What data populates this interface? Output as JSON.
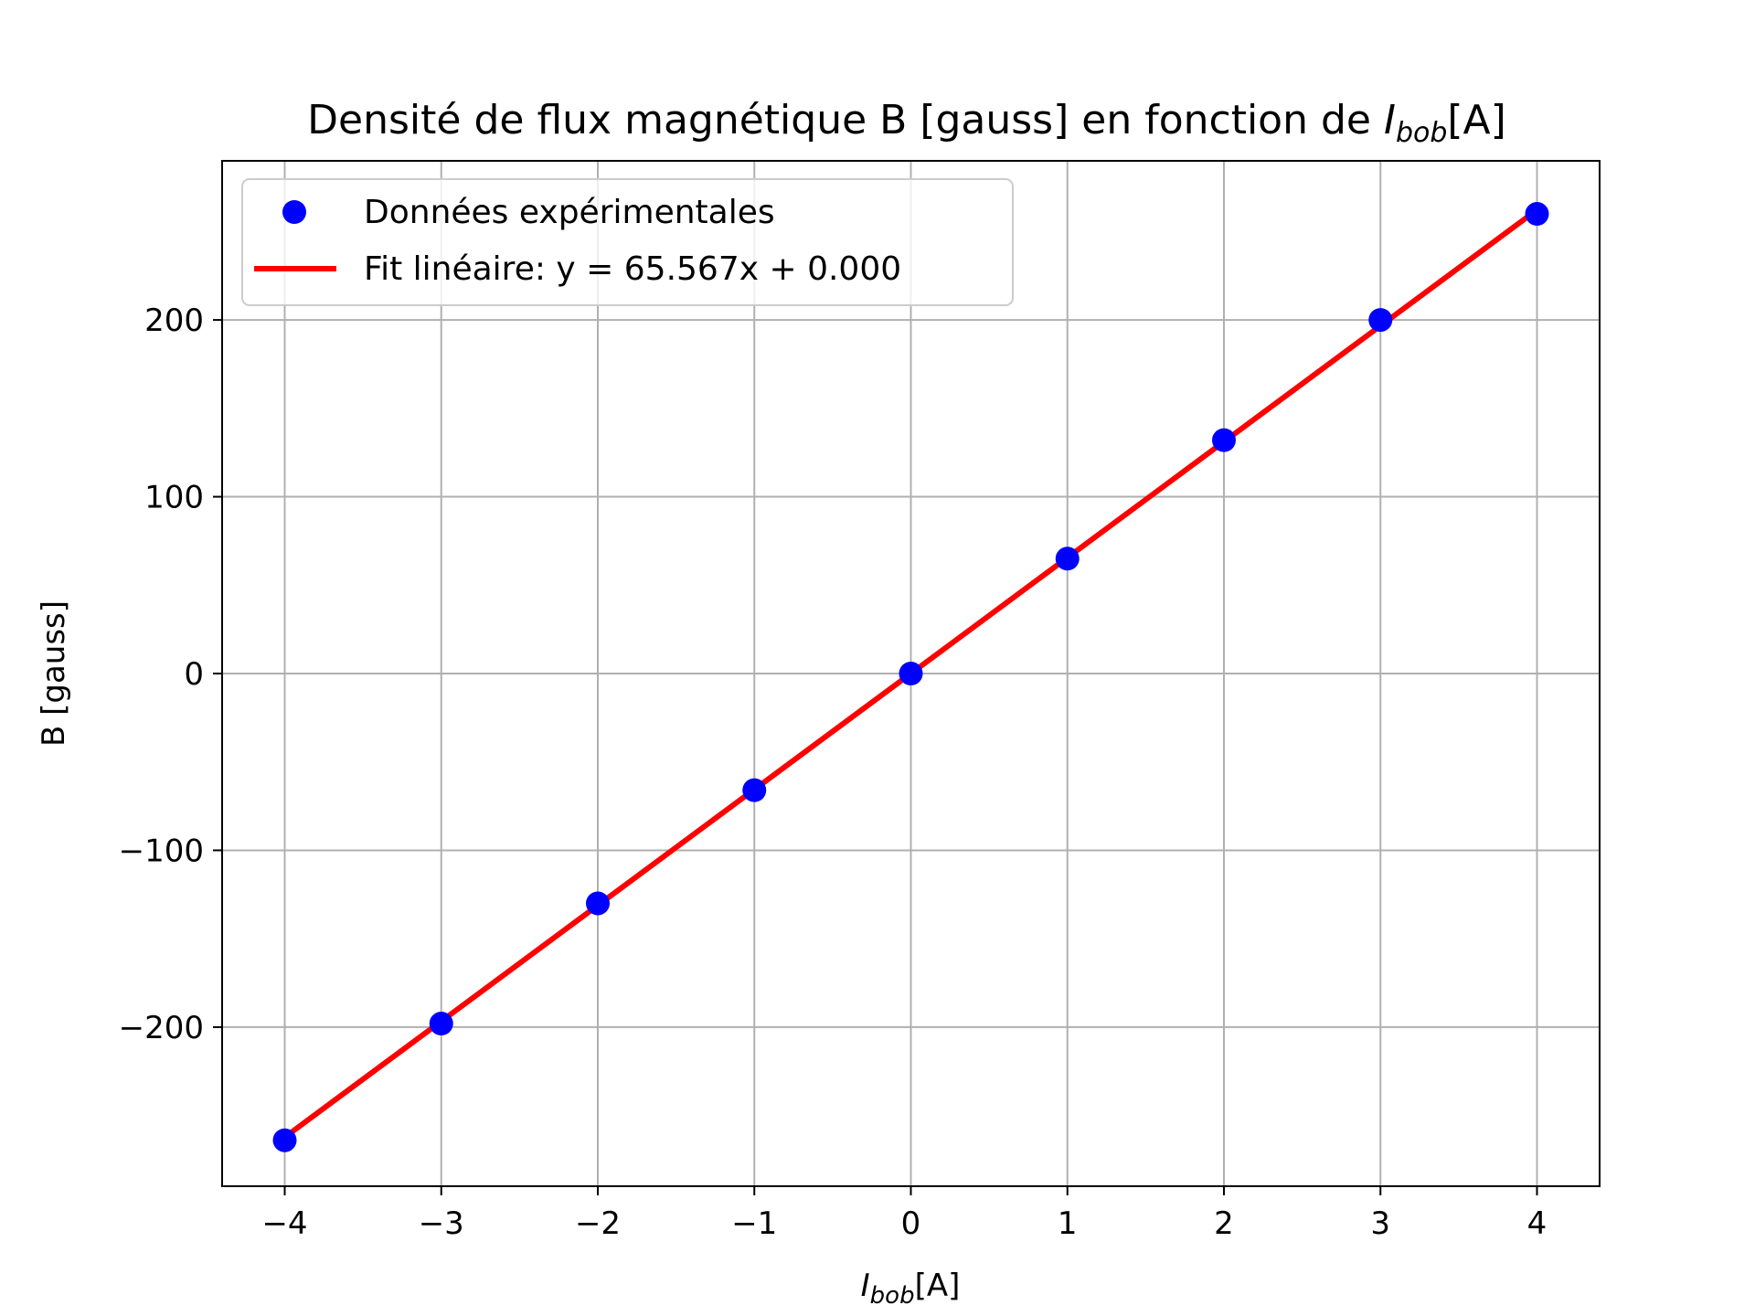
{
  "chart_data": {
    "type": "scatter",
    "title": {
      "main": "Densité de flux magnétique B [gauss] en fonction de ",
      "var": "I",
      "sub": "bob",
      "unit": "[A]"
    },
    "xlabel": {
      "var": "I",
      "sub": "bob",
      "unit": "[A]"
    },
    "ylabel": "B [gauss]",
    "xlim": [
      -4.4,
      4.4
    ],
    "ylim": [
      -290,
      290
    ],
    "xticks": [
      -4,
      -3,
      -2,
      -1,
      0,
      1,
      2,
      3,
      4
    ],
    "xtick_labels": [
      "−4",
      "−3",
      "−2",
      "−1",
      "0",
      "1",
      "2",
      "3",
      "4"
    ],
    "yticks": [
      -200,
      -100,
      0,
      100,
      200
    ],
    "ytick_labels": [
      "−200",
      "−100",
      "0",
      "100",
      "200"
    ],
    "grid": true,
    "legend_position": "top-left",
    "series": [
      {
        "name": "Données expérimentales",
        "kind": "scatter",
        "color": "#0000ff",
        "x": [
          -4,
          -3,
          -2,
          -1,
          0,
          1,
          2,
          3,
          4
        ],
        "y": [
          -264,
          -198,
          -130,
          -66,
          0,
          65,
          132,
          200,
          260
        ]
      },
      {
        "name": "Fit linéaire: y = 65.567x + 0.000",
        "kind": "line",
        "color": "#ff0000",
        "slope": 65.567,
        "intercept": 0.0,
        "x_range": [
          -4,
          4
        ]
      }
    ]
  }
}
